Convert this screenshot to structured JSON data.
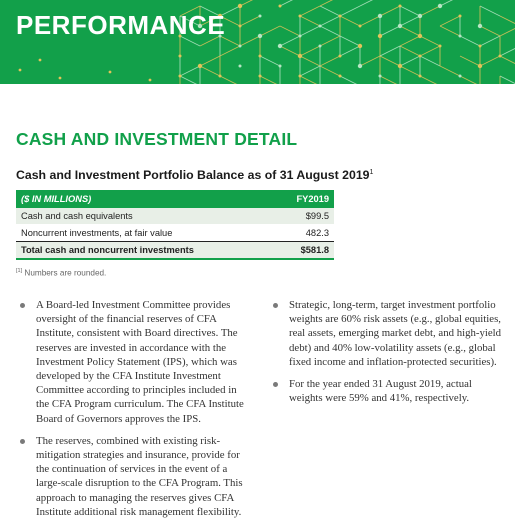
{
  "banner": {
    "title": "PERFORMANCE"
  },
  "section": {
    "title": "CASH AND INVESTMENT DETAIL"
  },
  "table": {
    "title": "Cash and Investment Portfolio Balance as of 31 August 2019",
    "title_footnote_mark": "1",
    "header": {
      "label": "($ IN MILLIONS)",
      "column": "FY2019"
    },
    "rows": [
      {
        "label": "Cash and cash equivalents",
        "value": "$99.5"
      },
      {
        "label": "Noncurrent investments, at fair value",
        "value": "482.3"
      }
    ],
    "total": {
      "label": "Total cash and noncurrent investments",
      "value": "$581.8"
    }
  },
  "footnote": {
    "mark": "[1]",
    "text": "Numbers are rounded."
  },
  "bullets_left": [
    "A Board-led Investment Committee provides oversight of the financial reserves of CFA Institute, consistent with Board directives. The reserves are invested in accordance with the Investment Policy Statement (IPS), which was developed by the CFA Institute Investment Committee according to principles included in the CFA Program curriculum. The CFA Institute Board of Governors approves the IPS.",
    "The reserves, combined with existing risk-mitigation strategies and insurance, provide for the continuation of services in the event of a large-scale disruption to the CFA Program. This approach to managing the reserves gives CFA Institute additional risk management flexibility."
  ],
  "bullets_right": [
    "Strategic, long-term, target investment portfolio weights are 60% risk assets (e.g., global equities, real assets, emerging market debt, and high-yield debt) and 40% low-volatility assets (e.g., global fixed income and inflation-protected securities).",
    "For the year ended 31 August 2019, actual weights were 59% and 41%, respectively."
  ],
  "colors": {
    "brand_green": "#12a04a",
    "row_shade": "#e8efe7",
    "pattern_gold": "#e2c35a",
    "pattern_light": "#b7e6c4"
  }
}
